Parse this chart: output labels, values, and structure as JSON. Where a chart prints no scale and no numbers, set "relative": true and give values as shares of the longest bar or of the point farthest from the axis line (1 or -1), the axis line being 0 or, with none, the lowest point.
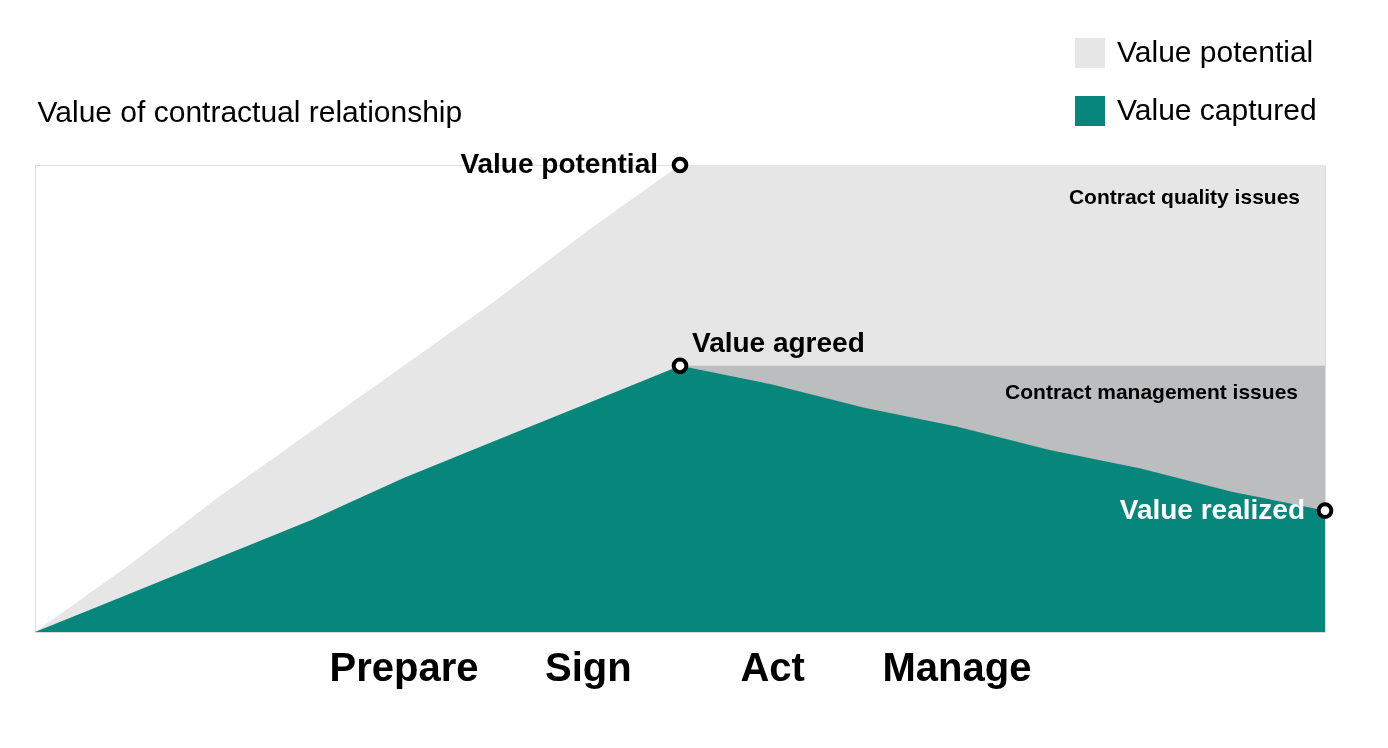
{
  "chart_data": {
    "type": "area",
    "relative": true,
    "ylabel": "Value of contractual relationship",
    "categories": [
      null,
      null,
      null,
      null,
      "Prepare",
      null,
      "Sign",
      null,
      "Act",
      null,
      "Manage",
      null,
      null,
      null,
      null
    ],
    "series": [
      {
        "name": "Value potential",
        "color": "#e6e6e6",
        "values": [
          0,
          0.14,
          0.29,
          0.43,
          0.57,
          0.71,
          0.86,
          1,
          1,
          1,
          1,
          1,
          1,
          1,
          1
        ]
      },
      {
        "color": "#bcbdbf",
        "values": [
          null,
          null,
          null,
          null,
          null,
          null,
          null,
          0.57,
          0.57,
          0.57,
          0.57,
          0.57,
          0.57,
          0.57,
          0.57
        ]
      },
      {
        "name": "Value captured",
        "color": "#07877c",
        "values": [
          0,
          0.08,
          0.16,
          0.24,
          0.33,
          0.41,
          0.49,
          0.57,
          0.53,
          0.48,
          0.44,
          0.39,
          0.35,
          0.3,
          0.26
        ]
      },
      {
        "type": "scatter",
        "color": "#000000",
        "marker": "circle",
        "values": [
          null,
          null,
          null,
          null,
          null,
          null,
          null,
          1,
          null,
          null,
          null,
          null,
          null,
          null,
          null
        ]
      },
      {
        "type": "scatter",
        "color": "#000000",
        "marker": "circle",
        "values": [
          null,
          null,
          null,
          null,
          null,
          null,
          null,
          0.57,
          null,
          null,
          null,
          null,
          null,
          null,
          0.26
        ]
      }
    ],
    "annotations": [
      "Value potential",
      "Value agreed",
      "Value realized",
      "Contract quality issues",
      "Contract management issues"
    ],
    "legend": "top right"
  }
}
